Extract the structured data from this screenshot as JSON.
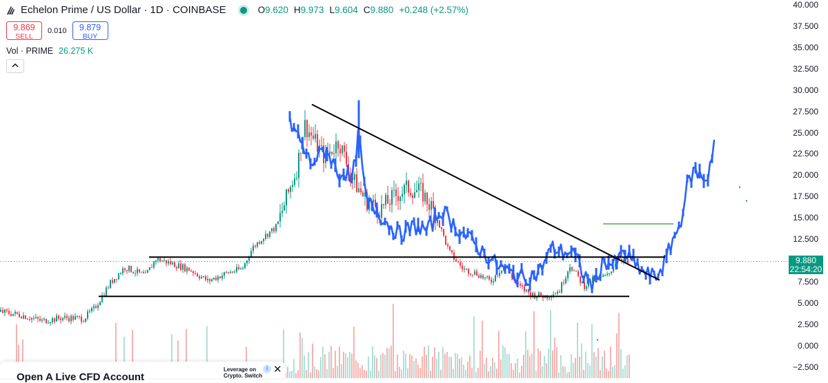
{
  "header": {
    "title": "Echelon Prime / US Dollar · 1D · COINBASE",
    "ohlc": {
      "o_label": "O",
      "o": "9.620",
      "h_label": "H",
      "h": "9.973",
      "l_label": "L",
      "l": "9.604",
      "c_label": "C",
      "c": "9.880",
      "change": "+0.248 (+2.57%)"
    }
  },
  "trade": {
    "sell_price": "9.869",
    "sell_label": "SELL",
    "spread": "0.010",
    "buy_price": "9.879",
    "buy_label": "BUY"
  },
  "volume": {
    "label": "Vol · PRIME",
    "value": "26.275 K"
  },
  "collapse_icon": "chevron-up-icon",
  "price_badge": {
    "price": "9.880",
    "time": "22:54:20"
  },
  "ad": {
    "title": "Open A Live CFD Account",
    "side_line1": "Leverage on",
    "side_line2": "Crypto. Switch"
  },
  "colors": {
    "up": "#089981",
    "down": "#f23645",
    "drawn_price": "#2962ff",
    "vol_up": "#a6dcd3",
    "vol_down": "#f7a9a7",
    "lines": "#000000",
    "green_line": "#4caf50",
    "badge": "#089981"
  },
  "chart_data": {
    "type": "candlestick",
    "title": "Echelon Prime / US Dollar · 1D · COINBASE",
    "y_axis": {
      "ticks": [
        "40.000",
        "37.500",
        "35.000",
        "32.500",
        "30.000",
        "27.500",
        "25.000",
        "22.500",
        "20.000",
        "17.500",
        "15.000",
        "12.500",
        "10.000",
        "7.500",
        "5.000",
        "2.500",
        "0.000",
        "−2.500"
      ],
      "range": [
        -2.5,
        40
      ]
    },
    "last_price": 9.88,
    "candle_series": [
      {
        "i": 0,
        "p": 4
      },
      {
        "i": 30,
        "p": 3.6
      },
      {
        "i": 60,
        "p": 2.9
      },
      {
        "i": 90,
        "p": 3.3
      },
      {
        "i": 120,
        "p": 3.2
      },
      {
        "i": 135,
        "p": 4.3
      },
      {
        "i": 160,
        "p": 7.5
      },
      {
        "i": 180,
        "p": 9.2
      },
      {
        "i": 210,
        "p": 8.2
      },
      {
        "i": 225,
        "p": 10.2
      },
      {
        "i": 250,
        "p": 9.6
      },
      {
        "i": 275,
        "p": 8.9
      },
      {
        "i": 300,
        "p": 7.6
      },
      {
        "i": 330,
        "p": 8.6
      },
      {
        "i": 350,
        "p": 9.0
      },
      {
        "i": 365,
        "p": 11.5
      },
      {
        "i": 380,
        "p": 12.7
      },
      {
        "i": 400,
        "p": 14.0
      },
      {
        "i": 415,
        "p": 17.5
      },
      {
        "i": 430,
        "p": 21.0
      },
      {
        "i": 440,
        "p": 26.0
      },
      {
        "i": 455,
        "p": 24.0
      },
      {
        "i": 470,
        "p": 22.0
      },
      {
        "i": 490,
        "p": 24.0
      },
      {
        "i": 510,
        "p": 19.5
      },
      {
        "i": 530,
        "p": 17.0
      },
      {
        "i": 550,
        "p": 16.0
      },
      {
        "i": 570,
        "p": 17.5
      },
      {
        "i": 590,
        "p": 18.5
      },
      {
        "i": 610,
        "p": 18.0
      },
      {
        "i": 630,
        "p": 15.5
      },
      {
        "i": 650,
        "p": 11.0
      },
      {
        "i": 670,
        "p": 9.0
      },
      {
        "i": 690,
        "p": 8.5
      },
      {
        "i": 710,
        "p": 7.5
      },
      {
        "i": 730,
        "p": 9.5
      },
      {
        "i": 750,
        "p": 7.0
      },
      {
        "i": 770,
        "p": 6.0
      },
      {
        "i": 790,
        "p": 5.8
      },
      {
        "i": 810,
        "p": 6.5
      },
      {
        "i": 825,
        "p": 9.5
      },
      {
        "i": 845,
        "p": 7.0
      },
      {
        "i": 860,
        "p": 7.8
      },
      {
        "i": 880,
        "p": 8.2
      },
      {
        "i": 895,
        "p": 10.5
      },
      {
        "i": 910,
        "p": 9.6
      }
    ],
    "drawn_series": [
      {
        "i": 420,
        "p": 26
      },
      {
        "i": 430,
        "p": 25
      },
      {
        "i": 440,
        "p": 23
      },
      {
        "i": 450,
        "p": 21.5
      },
      {
        "i": 460,
        "p": 22
      },
      {
        "i": 470,
        "p": 23
      },
      {
        "i": 480,
        "p": 22
      },
      {
        "i": 490,
        "p": 20
      },
      {
        "i": 500,
        "p": 20.5
      },
      {
        "i": 510,
        "p": 19
      },
      {
        "i": 520,
        "p": 25
      },
      {
        "i": 530,
        "p": 17
      },
      {
        "i": 545,
        "p": 16
      },
      {
        "i": 560,
        "p": 14.5
      },
      {
        "i": 580,
        "p": 13
      },
      {
        "i": 600,
        "p": 14
      },
      {
        "i": 620,
        "p": 13.5
      },
      {
        "i": 640,
        "p": 16
      },
      {
        "i": 660,
        "p": 14
      },
      {
        "i": 680,
        "p": 12.5
      },
      {
        "i": 700,
        "p": 11
      },
      {
        "i": 720,
        "p": 9.5
      },
      {
        "i": 740,
        "p": 8.5
      },
      {
        "i": 760,
        "p": 8.0
      },
      {
        "i": 780,
        "p": 8.5
      },
      {
        "i": 800,
        "p": 11.5
      },
      {
        "i": 815,
        "p": 11.0
      },
      {
        "i": 830,
        "p": 11.0
      },
      {
        "i": 845,
        "p": 8.5
      },
      {
        "i": 860,
        "p": 7.0
      },
      {
        "i": 875,
        "p": 10.0
      },
      {
        "i": 890,
        "p": 9.5
      },
      {
        "i": 905,
        "p": 11.0
      },
      {
        "i": 920,
        "p": 9.5
      },
      {
        "i": 935,
        "p": 8.5
      },
      {
        "i": 950,
        "p": 8.0
      },
      {
        "i": 965,
        "p": 10.0
      },
      {
        "i": 975,
        "p": 12.5
      },
      {
        "i": 985,
        "p": 14.0
      },
      {
        "i": 995,
        "p": 18.5
      },
      {
        "i": 1005,
        "p": 20.5
      },
      {
        "i": 1015,
        "p": 20.0
      },
      {
        "i": 1025,
        "p": 19.5
      },
      {
        "i": 1035,
        "p": 24.0
      }
    ],
    "trendlines": [
      {
        "from": {
          "i": 452,
          "p": 28.3
        },
        "to": {
          "i": 956,
          "p": 7.7
        }
      },
      {
        "from": {
          "i": 216,
          "p": 10.4
        },
        "to": {
          "i": 964,
          "p": 10.4
        }
      },
      {
        "from": {
          "i": 143,
          "p": 5.8
        },
        "to": {
          "i": 912,
          "p": 5.8
        }
      },
      {
        "from": {
          "i": 874,
          "p": 14.3
        },
        "to": {
          "i": 976,
          "p": 14.3
        }
      }
    ]
  }
}
